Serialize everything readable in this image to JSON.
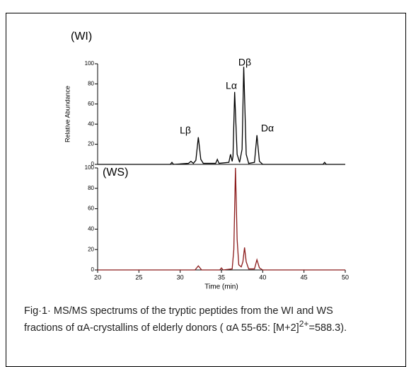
{
  "chart_data": [
    {
      "type": "line",
      "label": "(WI)",
      "ylabel": "Relative Abundance",
      "annotations": [
        "Lβ",
        "Lα",
        "Dβ",
        "Dα"
      ],
      "x": [
        20,
        28.8,
        29,
        29.2,
        31,
        31.3,
        31.6,
        31.9,
        32.2,
        32.5,
        32.8,
        34.3,
        34.5,
        34.7,
        35.9,
        36.1,
        36.3,
        36.4,
        36.6,
        36.9,
        37.2,
        37.5,
        37.7,
        38.0,
        38.3,
        39.0,
        39.3,
        39.6,
        40.0,
        47.3,
        47.5,
        47.7,
        50
      ],
      "series": [
        {
          "color": "#000000",
          "values": [
            0,
            0,
            2,
            0,
            1,
            3,
            1,
            4,
            27,
            5,
            1,
            1,
            5,
            1,
            2,
            10,
            3,
            8,
            72,
            10,
            2,
            15,
            97,
            10,
            1,
            2,
            29,
            3,
            0,
            0,
            2,
            0,
            0
          ]
        }
      ],
      "xlim": [
        20,
        50
      ],
      "ylim": [
        0,
        100
      ],
      "yticks": [
        0,
        20,
        40,
        60,
        80,
        100
      ]
    },
    {
      "type": "line",
      "label": "(WS)",
      "xlabel": "Time (min)",
      "x": [
        20,
        31.8,
        32.2,
        32.6,
        34.8,
        35.0,
        35.2,
        36.3,
        36.5,
        36.7,
        36.9,
        37.1,
        37.4,
        37.6,
        37.8,
        38.0,
        38.3,
        39.0,
        39.3,
        39.6,
        40.0,
        50
      ],
      "series": [
        {
          "color": "#8b1a1a",
          "values": [
            0,
            0,
            4,
            0,
            0,
            2,
            0,
            1,
            20,
            100,
            30,
            5,
            3,
            8,
            22,
            8,
            1,
            1,
            10,
            2,
            0,
            0
          ]
        }
      ],
      "xlim": [
        20,
        50
      ],
      "ylim": [
        0,
        100
      ],
      "yticks": [
        0,
        20,
        40,
        60,
        80,
        100
      ],
      "xticks": [
        20,
        25,
        30,
        35,
        40,
        45,
        50
      ]
    }
  ],
  "caption": {
    "text": "Fig·1· MS/MS spectrums of the tryptic peptides from the WI and WS fractions of αA-crystallins of elderly donors ( αA 55-65: [M+2]",
    "superscript": "2+",
    "end": "=588.3)."
  }
}
